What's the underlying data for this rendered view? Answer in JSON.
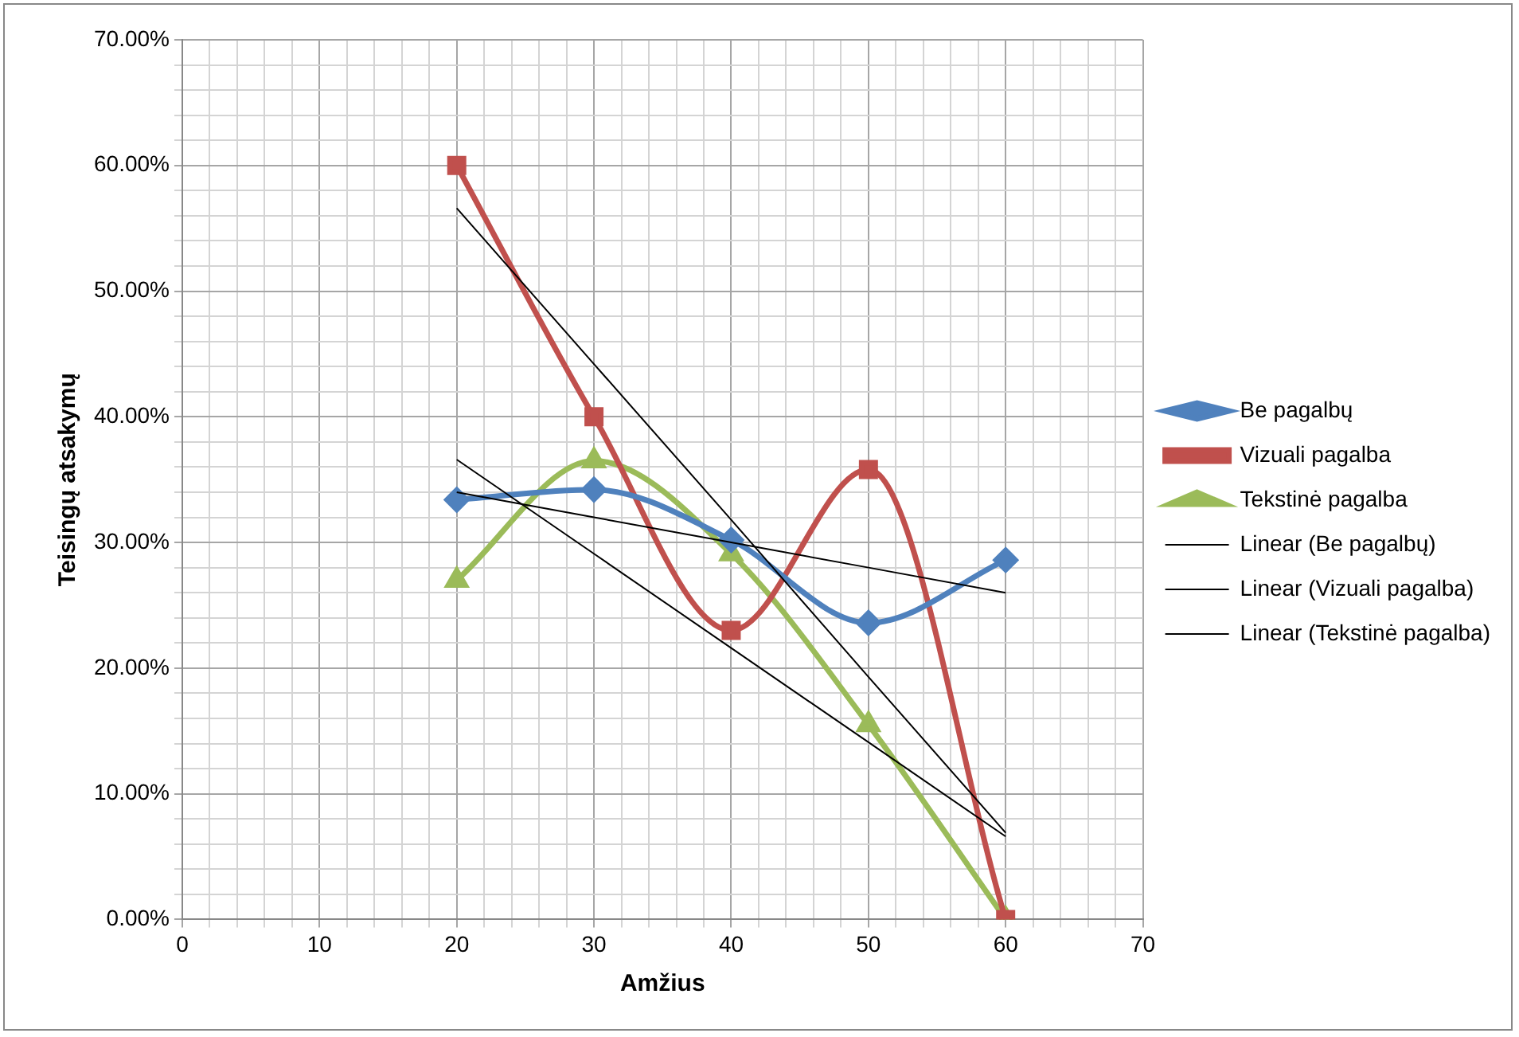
{
  "chart_data": {
    "type": "line",
    "xlabel": "Amžius",
    "ylabel": "Teisingų atsakymų",
    "legend": "right",
    "grid": true,
    "x": [
      20,
      30,
      40,
      50,
      60
    ],
    "xlim": [
      0,
      70
    ],
    "xticks": [
      0,
      {
        "value": 2,
        "label": null
      },
      {
        "value": 4,
        "label": null
      },
      {
        "value": 6,
        "label": null
      },
      {
        "value": 8,
        "label": null
      },
      10,
      {
        "value": 12,
        "label": null
      },
      {
        "value": 14,
        "label": null
      },
      {
        "value": 16,
        "label": null
      },
      {
        "value": 18,
        "label": null
      },
      20,
      {
        "value": 22,
        "label": null
      },
      {
        "value": 24,
        "label": null
      },
      {
        "value": 26,
        "label": null
      },
      {
        "value": 28,
        "label": null
      },
      30,
      {
        "value": 32,
        "label": null
      },
      {
        "value": 34,
        "label": null
      },
      {
        "value": 36,
        "label": null
      },
      {
        "value": 38,
        "label": null
      },
      40,
      {
        "value": 42,
        "label": null
      },
      {
        "value": 44,
        "label": null
      },
      {
        "value": 46,
        "label": null
      },
      {
        "value": 48,
        "label": null
      },
      50,
      {
        "value": 52,
        "label": null
      },
      {
        "value": 54,
        "label": null
      },
      {
        "value": 56,
        "label": null
      },
      {
        "value": 58,
        "label": null
      },
      60,
      {
        "value": 62,
        "label": null
      },
      {
        "value": 64,
        "label": null
      },
      {
        "value": 66,
        "label": null
      },
      {
        "value": 68,
        "label": null
      },
      70
    ],
    "ylim": [
      0,
      70
    ],
    "yticks": [
      {
        "value": 0,
        "label": "0.00%"
      },
      {
        "value": 2,
        "label": null
      },
      {
        "value": 4,
        "label": null
      },
      {
        "value": 6,
        "label": null
      },
      {
        "value": 8,
        "label": null
      },
      {
        "value": 10,
        "label": "10.00%"
      },
      {
        "value": 12,
        "label": null
      },
      {
        "value": 14,
        "label": null
      },
      {
        "value": 16,
        "label": null
      },
      {
        "value": 18,
        "label": null
      },
      {
        "value": 20,
        "label": "20.00%"
      },
      {
        "value": 22,
        "label": null
      },
      {
        "value": 24,
        "label": null
      },
      {
        "value": 26,
        "label": null
      },
      {
        "value": 28,
        "label": null
      },
      {
        "value": 30,
        "label": "30.00%"
      },
      {
        "value": 32,
        "label": null
      },
      {
        "value": 34,
        "label": null
      },
      {
        "value": 36,
        "label": null
      },
      {
        "value": 38,
        "label": null
      },
      {
        "value": 40,
        "label": "40.00%"
      },
      {
        "value": 42,
        "label": null
      },
      {
        "value": 44,
        "label": null
      },
      {
        "value": 46,
        "label": null
      },
      {
        "value": 48,
        "label": null
      },
      {
        "value": 50,
        "label": "50.00%"
      },
      {
        "value": 52,
        "label": null
      },
      {
        "value": 54,
        "label": null
      },
      {
        "value": 56,
        "label": null
      },
      {
        "value": 58,
        "label": null
      },
      {
        "value": 60,
        "label": "60.00%"
      },
      {
        "value": 62,
        "label": null
      },
      {
        "value": 64,
        "label": null
      },
      {
        "value": 66,
        "label": null
      },
      {
        "value": 68,
        "label": null
      },
      {
        "value": 70,
        "label": "70.00%"
      }
    ],
    "series": [
      {
        "name": "Be pagalbų",
        "color": "#4f81bd",
        "marker": "diamond",
        "values": [
          33.4,
          34.2,
          30.2,
          23.6,
          28.6
        ]
      },
      {
        "name": "Vizuali pagalba",
        "color": "#c0504d",
        "marker": "square",
        "values": [
          60.0,
          40.0,
          23.0,
          35.8,
          0
        ]
      },
      {
        "name": "Tekstinė pagalba",
        "color": "#9bbb59",
        "marker": "triangle",
        "values": [
          27.0,
          36.5,
          29.1,
          15.5,
          0
        ]
      },
      {
        "name": "Linear (Be pagalbų)",
        "color": "#000000",
        "marker": "none",
        "values": [
          34.0,
          32.0,
          30.0,
          28.0,
          26.0
        ]
      },
      {
        "name": "Linear (Vizuali pagalba)",
        "color": "#000000",
        "marker": "none",
        "values": [
          56.6,
          44.2,
          31.8,
          19.3,
          6.9
        ]
      },
      {
        "name": "Linear (Tekstinė pagalba)",
        "color": "#000000",
        "marker": "none",
        "values": [
          36.6,
          29.1,
          21.6,
          14.1,
          6.6
        ]
      }
    ]
  }
}
